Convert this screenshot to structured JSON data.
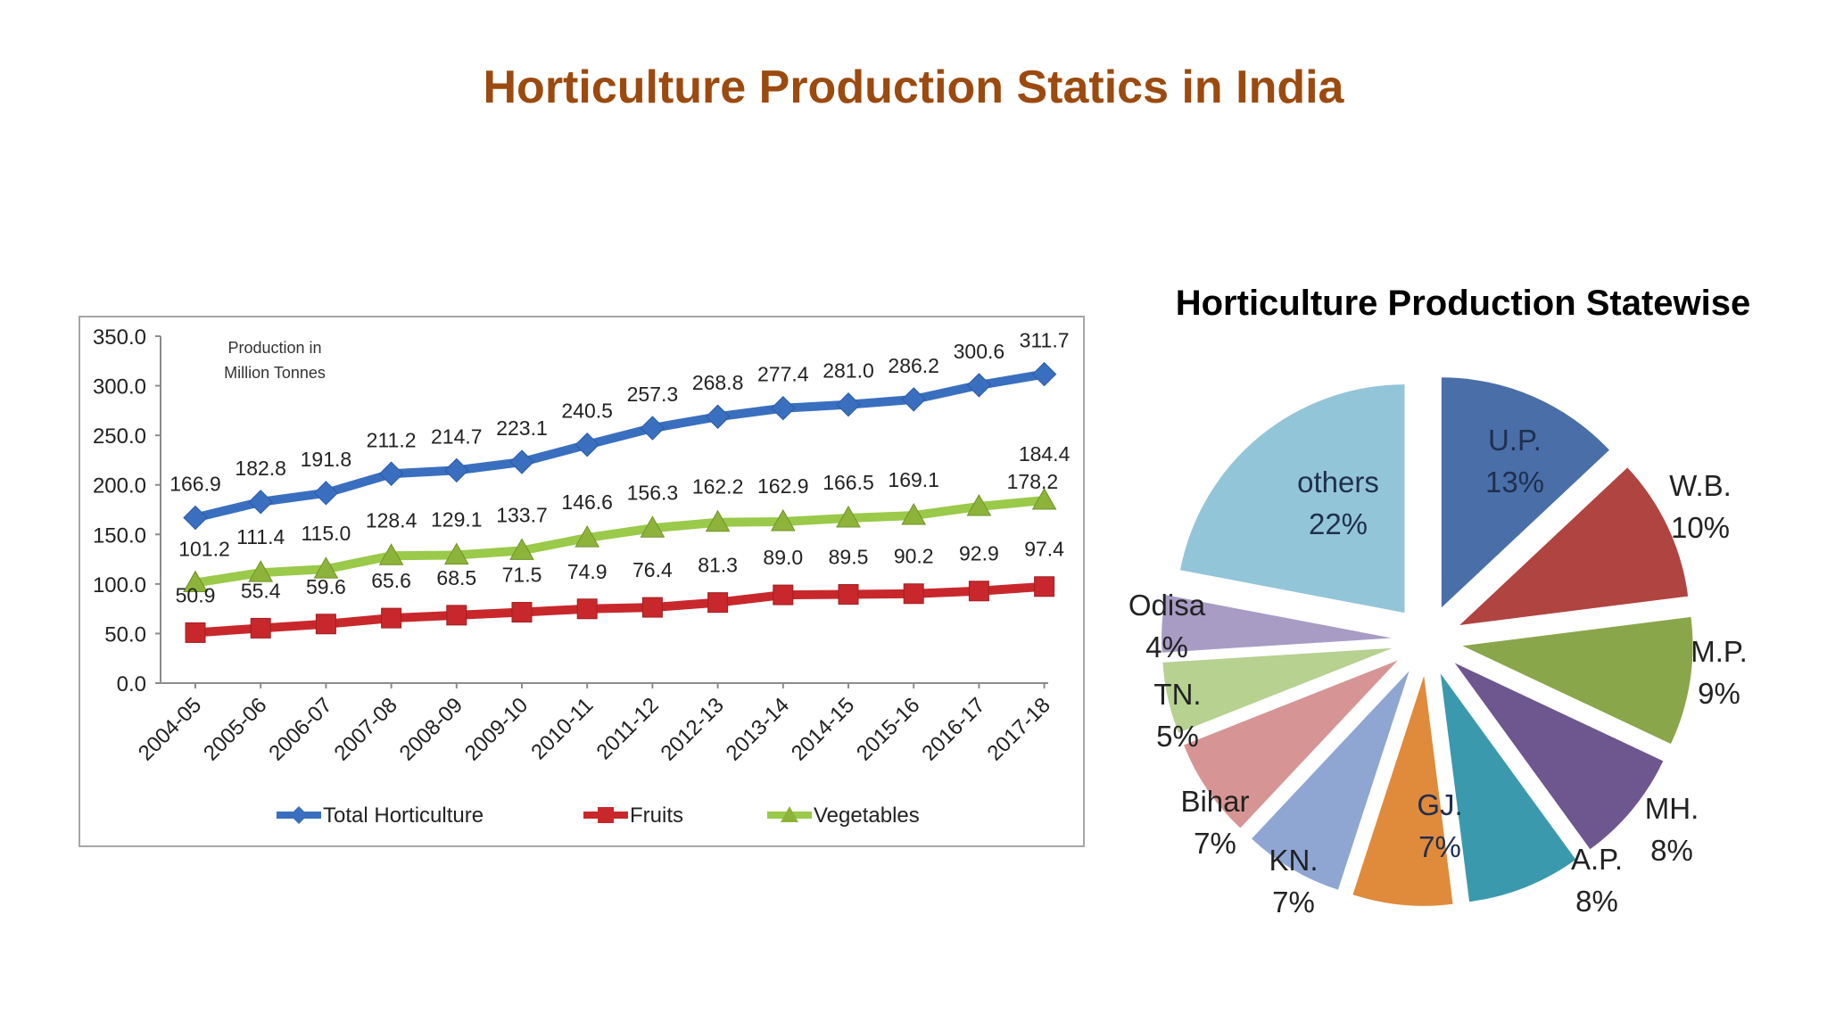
{
  "page": {
    "title": "Horticulture Production Statics in India"
  },
  "chart_data": [
    {
      "type": "line",
      "title": "",
      "annotation": "Production in Million Tonnes",
      "annotation_lines": [
        "Production in",
        "Million Tonnes"
      ],
      "xlabel": "",
      "ylabel": "",
      "ylim": [
        0,
        350
      ],
      "yticks": [
        "0.0",
        "50.0",
        "100.0",
        "150.0",
        "200.0",
        "250.0",
        "300.0",
        "350.0"
      ],
      "ytick_values": [
        0,
        50,
        100,
        150,
        200,
        250,
        300,
        350
      ],
      "grid": false,
      "legend": "bottom",
      "categories": [
        "2004-05",
        "2005-06",
        "2006-07",
        "2007-08",
        "2008-09",
        "2009-10",
        "2010-11",
        "2011-12",
        "2012-13",
        "2013-14",
        "2014-15",
        "2015-16",
        "2016-17",
        "2017-18"
      ],
      "series": [
        {
          "name": "Total Horticulture",
          "color": "#3a6fbf",
          "marker": "diamond",
          "values": [
            166.9,
            182.8,
            191.8,
            211.2,
            214.7,
            223.1,
            240.5,
            257.3,
            268.8,
            277.4,
            281.0,
            286.2,
            300.6,
            311.7
          ],
          "labels": [
            "166.9",
            "182.8",
            "191.8",
            "211.2",
            "214.7",
            "223.1",
            "240.5",
            "257.3",
            "268.8",
            "277.4",
            "281.0",
            "286.2",
            "300.6",
            "311.7"
          ]
        },
        {
          "name": "Fruits",
          "color": "#c8282c",
          "marker": "square",
          "values": [
            50.9,
            55.4,
            59.6,
            65.6,
            68.5,
            71.5,
            74.9,
            76.4,
            81.3,
            89.0,
            89.5,
            90.2,
            92.9,
            97.4
          ],
          "labels": [
            "50.9",
            "55.4",
            "59.6",
            "65.6",
            "68.5",
            "71.5",
            "74.9",
            "76.4",
            "81.3",
            "89.0",
            "89.5",
            "90.2",
            "92.9",
            "97.4"
          ]
        },
        {
          "name": "Vegetables",
          "color": "#8db33a",
          "line_color": "#9bc94a",
          "marker": "triangle",
          "values": [
            101.2,
            111.4,
            115.0,
            128.4,
            129.1,
            133.7,
            146.6,
            156.3,
            162.2,
            162.9,
            166.5,
            169.1,
            178.2,
            184.4
          ],
          "labels": [
            "101.2",
            "111.4",
            "115.0",
            "128.4",
            "129.1",
            "133.7",
            "146.6",
            "156.3",
            "162.2",
            "162.9",
            "166.5",
            "169.1",
            "178.2",
            "184.4"
          ]
        }
      ]
    },
    {
      "type": "pie",
      "title": "Horticulture Production Statewise",
      "legend": "none",
      "slices": [
        {
          "label": "U.P.",
          "percent_label": "13%",
          "value": 13,
          "color": "#4a6ea8"
        },
        {
          "label": "W.B.",
          "percent_label": "10%",
          "value": 10,
          "color": "#b04441"
        },
        {
          "label": "M.P.",
          "percent_label": "9%",
          "value": 9,
          "color": "#8aa64a"
        },
        {
          "label": "MH.",
          "percent_label": "8%",
          "value": 8,
          "color": "#6e568f"
        },
        {
          "label": "A.P.",
          "percent_label": "8%",
          "value": 8,
          "color": "#3b99ad"
        },
        {
          "label": "GJ.",
          "percent_label": "7%",
          "value": 7,
          "color": "#e08a3c"
        },
        {
          "label": "KN.",
          "percent_label": "7%",
          "value": 7,
          "color": "#8fa6d3"
        },
        {
          "label": "Bihar",
          "percent_label": "7%",
          "value": 7,
          "color": "#d69594"
        },
        {
          "label": "TN.",
          "percent_label": "5%",
          "value": 5,
          "color": "#b6d190"
        },
        {
          "label": "Odisa",
          "percent_label": "4%",
          "value": 4,
          "color": "#a89cc4"
        },
        {
          "label": "others",
          "percent_label": "22%",
          "value": 22,
          "color": "#93c5d8"
        }
      ]
    }
  ]
}
